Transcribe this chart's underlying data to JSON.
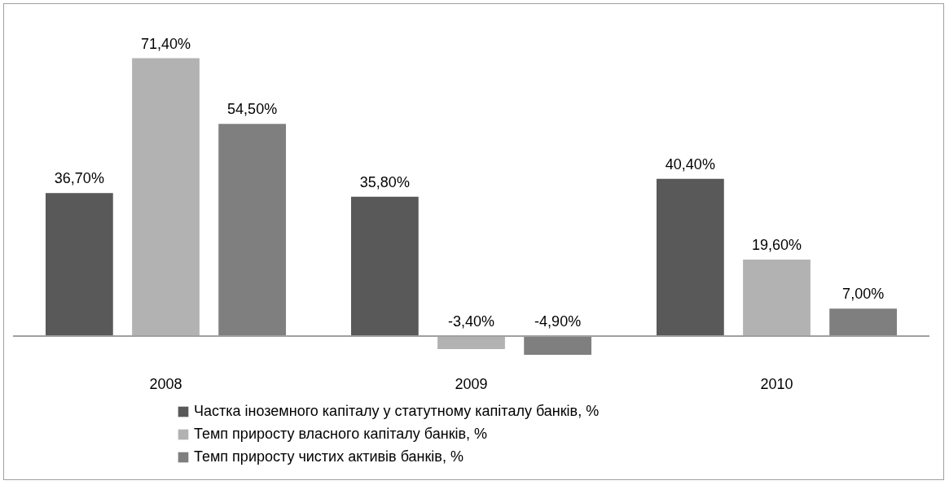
{
  "chart_data": {
    "type": "bar",
    "categories": [
      "2008",
      "2009",
      "2010"
    ],
    "series": [
      {
        "name": "Частка іноземного капіталу у статутному капіталу банків, %",
        "color": "#595959",
        "values": [
          36.7,
          35.8,
          40.4
        ],
        "value_labels": [
          "36,70%",
          "35,80%",
          "40,40%"
        ]
      },
      {
        "name": "Темп приросту власного капіталу банків, %",
        "color": "#b2b2b2",
        "values": [
          71.4,
          -3.4,
          19.6
        ],
        "value_labels": [
          "71,40%",
          "-3,40%",
          "19,60%"
        ]
      },
      {
        "name": "Темп приросту чистих активів банків, %",
        "color": "#7f7f7f",
        "values": [
          54.5,
          -4.9,
          7.0
        ],
        "value_labels": [
          "54,50%",
          "-4,90%",
          "7,00%"
        ]
      }
    ],
    "legend": "bottom",
    "grid": false
  }
}
